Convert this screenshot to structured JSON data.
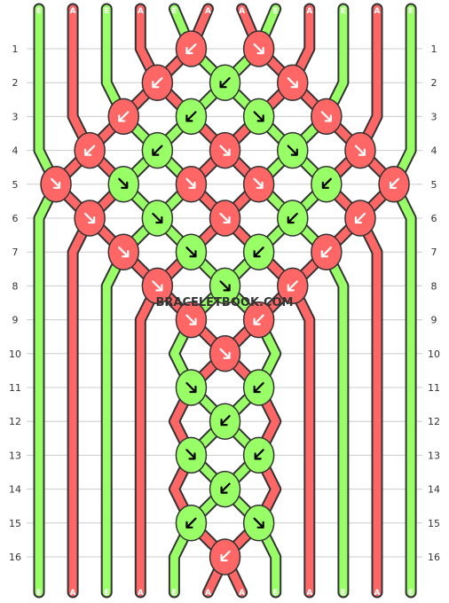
{
  "watermark": "BRACELETBOOK.COM",
  "colors": {
    "E": "#99ff66",
    "A": "#ff6666",
    "outline": "#333333",
    "grid": "#cccccc"
  },
  "strands_top": [
    "E",
    "A",
    "E",
    "A",
    "E",
    "A",
    "A",
    "E",
    "A",
    "E",
    "A",
    "E"
  ],
  "strands_bottom": [
    "E",
    "A",
    "E",
    "A",
    "E",
    "A",
    "A",
    "E",
    "A",
    "E",
    "A",
    "E"
  ],
  "row_labels": [
    "1",
    "2",
    "3",
    "4",
    "5",
    "6",
    "7",
    "8",
    "9",
    "10",
    "11",
    "12",
    "13",
    "14",
    "15",
    "16"
  ],
  "knots": [
    {
      "row": 1,
      "col": 5,
      "c": "A",
      "d": "sw"
    },
    {
      "row": 1,
      "col": 7,
      "c": "A",
      "d": "se"
    },
    {
      "row": 2,
      "col": 4,
      "c": "A",
      "d": "sw"
    },
    {
      "row": 2,
      "col": 6,
      "c": "E",
      "d": "sw"
    },
    {
      "row": 2,
      "col": 8,
      "c": "A",
      "d": "se"
    },
    {
      "row": 3,
      "col": 3,
      "c": "A",
      "d": "sw"
    },
    {
      "row": 3,
      "col": 5,
      "c": "E",
      "d": "sw"
    },
    {
      "row": 3,
      "col": 7,
      "c": "E",
      "d": "se"
    },
    {
      "row": 3,
      "col": 9,
      "c": "A",
      "d": "se"
    },
    {
      "row": 4,
      "col": 2,
      "c": "A",
      "d": "sw"
    },
    {
      "row": 4,
      "col": 4,
      "c": "E",
      "d": "sw"
    },
    {
      "row": 4,
      "col": 6,
      "c": "A",
      "d": "se"
    },
    {
      "row": 4,
      "col": 8,
      "c": "E",
      "d": "se"
    },
    {
      "row": 4,
      "col": 10,
      "c": "A",
      "d": "se"
    },
    {
      "row": 5,
      "col": 1,
      "c": "A",
      "d": "rs"
    },
    {
      "row": 5,
      "col": 3,
      "c": "E",
      "d": "rs"
    },
    {
      "row": 5,
      "col": 5,
      "c": "A",
      "d": "rs"
    },
    {
      "row": 5,
      "col": 7,
      "c": "A",
      "d": "rs"
    },
    {
      "row": 5,
      "col": 9,
      "c": "E",
      "d": "ls"
    },
    {
      "row": 5,
      "col": 11,
      "c": "A",
      "d": "ls"
    },
    {
      "row": 6,
      "col": 2,
      "c": "A",
      "d": "se"
    },
    {
      "row": 6,
      "col": 4,
      "c": "E",
      "d": "se"
    },
    {
      "row": 6,
      "col": 6,
      "c": "A",
      "d": "se"
    },
    {
      "row": 6,
      "col": 8,
      "c": "E",
      "d": "sw"
    },
    {
      "row": 6,
      "col": 10,
      "c": "A",
      "d": "sw"
    },
    {
      "row": 7,
      "col": 3,
      "c": "A",
      "d": "se"
    },
    {
      "row": 7,
      "col": 5,
      "c": "E",
      "d": "se"
    },
    {
      "row": 7,
      "col": 7,
      "c": "E",
      "d": "sw"
    },
    {
      "row": 7,
      "col": 9,
      "c": "A",
      "d": "sw"
    },
    {
      "row": 8,
      "col": 4,
      "c": "A",
      "d": "se"
    },
    {
      "row": 8,
      "col": 6,
      "c": "E",
      "d": "se"
    },
    {
      "row": 8,
      "col": 8,
      "c": "A",
      "d": "sw"
    },
    {
      "row": 9,
      "col": 5,
      "c": "A",
      "d": "se"
    },
    {
      "row": 9,
      "col": 7,
      "c": "A",
      "d": "sw"
    },
    {
      "row": 10,
      "col": 6,
      "c": "A",
      "d": "se"
    },
    {
      "row": 11,
      "col": 5,
      "c": "E",
      "d": "se"
    },
    {
      "row": 11,
      "col": 7,
      "c": "E",
      "d": "sw"
    },
    {
      "row": 12,
      "col": 6,
      "c": "E",
      "d": "ls"
    },
    {
      "row": 13,
      "col": 5,
      "c": "E",
      "d": "rs"
    },
    {
      "row": 13,
      "col": 7,
      "c": "E",
      "d": "ls"
    },
    {
      "row": 14,
      "col": 6,
      "c": "E",
      "d": "ls"
    },
    {
      "row": 15,
      "col": 5,
      "c": "E",
      "d": "sw"
    },
    {
      "row": 15,
      "col": 7,
      "c": "E",
      "d": "se"
    },
    {
      "row": 16,
      "col": 6,
      "c": "A",
      "d": "ls"
    }
  ]
}
